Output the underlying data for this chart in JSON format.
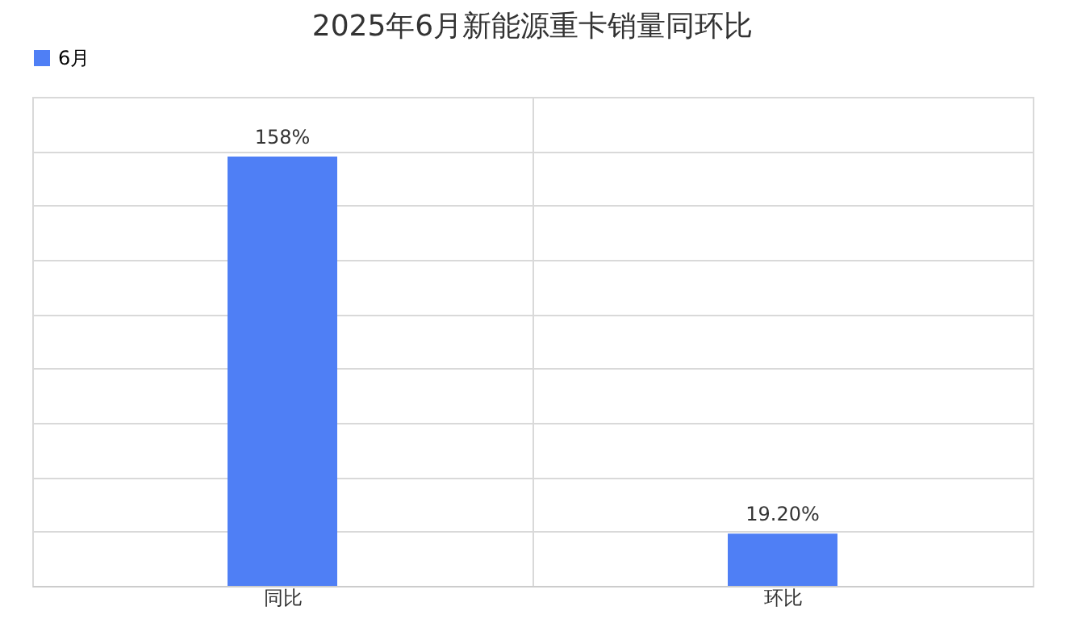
{
  "chart_data": {
    "type": "bar",
    "title": "2025年6月新能源重卡销量同环比",
    "categories": [
      "同比",
      "环比"
    ],
    "series": [
      {
        "name": "6月",
        "color": "#4f7ff5",
        "values": [
          158,
          19.2
        ],
        "value_labels": [
          "158%",
          "19.20%"
        ]
      }
    ],
    "ylim": [
      0,
      180
    ],
    "grid": true,
    "legend": "top",
    "tick_labels": "x"
  }
}
